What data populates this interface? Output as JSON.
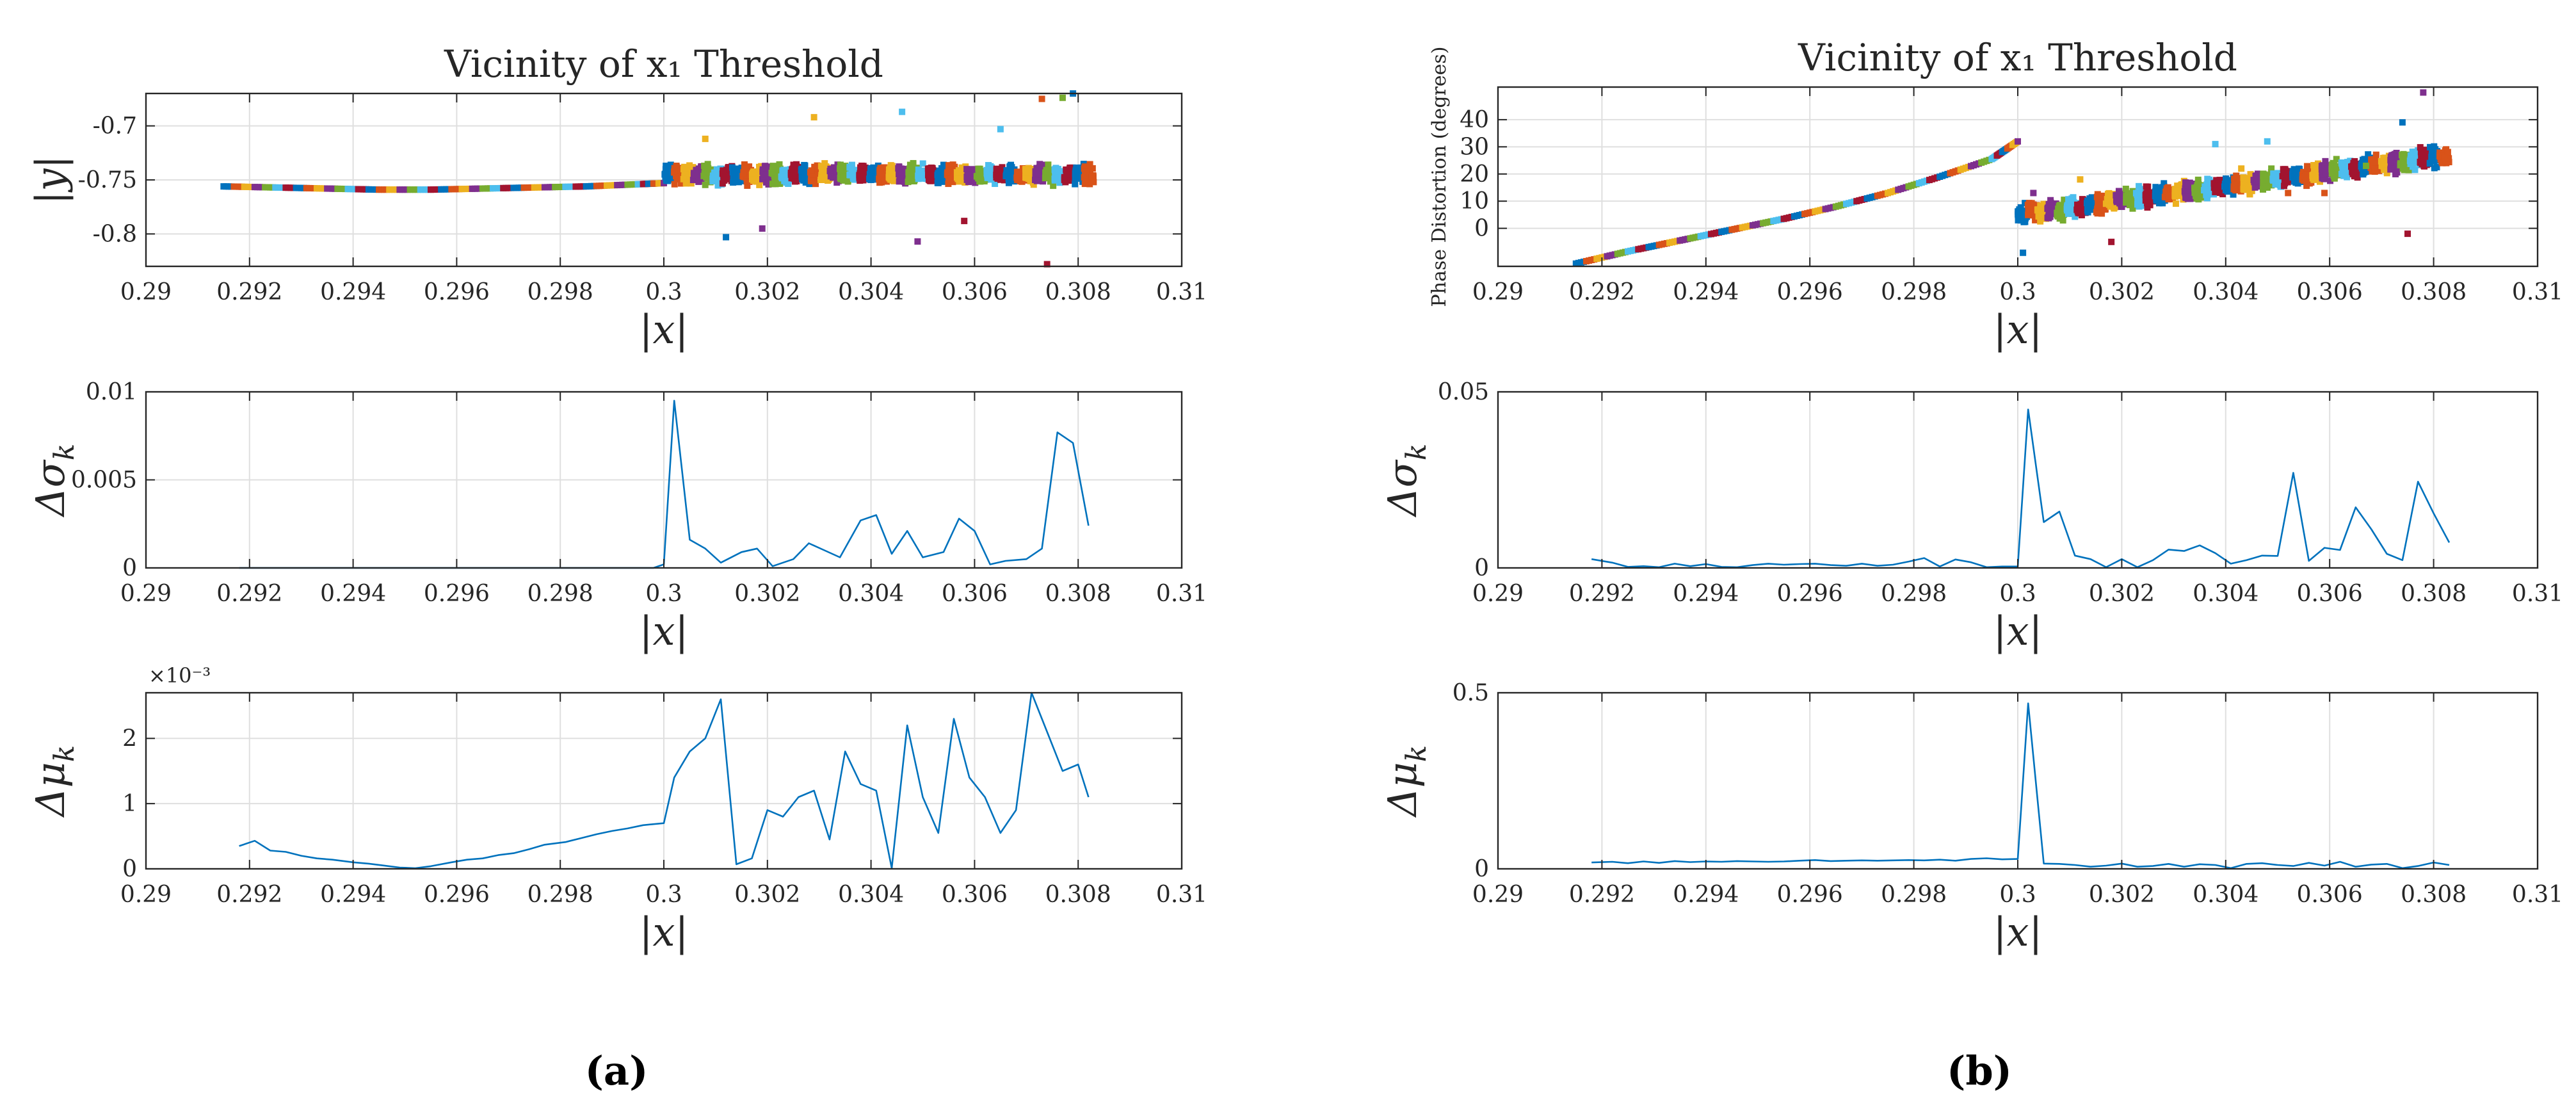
{
  "panel_labels": [
    "(a)",
    "(b)"
  ],
  "chart_data": [
    {
      "id": "a1",
      "type": "scatter",
      "title": "Vicinity of x₁ Threshold",
      "xlabel": "|x|",
      "ylabel": "|y|",
      "xlim": [
        0.29,
        0.31
      ],
      "ylim": [
        -0.83,
        -0.67
      ],
      "xticks": [
        0.29,
        0.292,
        0.294,
        0.296,
        0.298,
        0.3,
        0.302,
        0.304,
        0.306,
        0.308,
        0.31
      ],
      "xticklabels": [
        "0.29",
        "0.292",
        "0.294",
        "0.296",
        "0.298",
        "0.3",
        "0.302",
        "0.304",
        "0.306",
        "0.308",
        "0.31"
      ],
      "yticks": [
        -0.8,
        -0.75,
        -0.7
      ],
      "yticklabels": [
        "-0.8",
        "-0.75",
        "-0.7"
      ],
      "exponent": "",
      "palette": [
        "#0072BD",
        "#D95319",
        "#EDB120",
        "#7E2F8E",
        "#77AC30",
        "#4DBEEE",
        "#A2142F"
      ],
      "segments": [
        {
          "kind": "line",
          "x": [
            0.2915,
            0.2925,
            0.2935,
            0.2945,
            0.2955,
            0.2965,
            0.2975,
            0.2985,
            0.2995,
            0.3
          ],
          "y": [
            -0.756,
            -0.757,
            -0.758,
            -0.759,
            -0.759,
            -0.758,
            -0.757,
            -0.756,
            -0.754,
            -0.753
          ]
        },
        {
          "kind": "cloud",
          "x_range": [
            0.3,
            0.3083
          ],
          "center": -0.745,
          "spread": 0.012,
          "outliers": [
            [
              0.3012,
              -0.803
            ],
            [
              0.3049,
              -0.807
            ],
            [
              0.3074,
              -0.828
            ],
            [
              0.3029,
              -0.692
            ],
            [
              0.3046,
              -0.687
            ],
            [
              0.3073,
              -0.675
            ],
            [
              0.3077,
              -0.674
            ],
            [
              0.3079,
              -0.67
            ],
            [
              0.3019,
              -0.795
            ],
            [
              0.3058,
              -0.788
            ],
            [
              0.3008,
              -0.712
            ],
            [
              0.3065,
              -0.703
            ]
          ]
        }
      ]
    },
    {
      "id": "a2",
      "type": "line",
      "title": "",
      "xlabel": "|x|",
      "ylabel": "Δσk",
      "xlim": [
        0.29,
        0.31
      ],
      "ylim": [
        0,
        0.01
      ],
      "xticks": [
        0.29,
        0.292,
        0.294,
        0.296,
        0.298,
        0.3,
        0.302,
        0.304,
        0.306,
        0.308,
        0.31
      ],
      "xticklabels": [
        "0.29",
        "0.292",
        "0.294",
        "0.296",
        "0.298",
        "0.3",
        "0.302",
        "0.304",
        "0.306",
        "0.308",
        "0.31"
      ],
      "yticks": [
        0,
        0.005,
        0.01
      ],
      "yticklabels": [
        "0",
        "0.005",
        "0.01"
      ],
      "exponent": "",
      "series": [
        {
          "name": "Δσk",
          "color": "#0072BD",
          "x": [
            0.2918,
            0.2923,
            0.2928,
            0.2933,
            0.2938,
            0.2943,
            0.2948,
            0.2953,
            0.2958,
            0.2963,
            0.2968,
            0.2973,
            0.2978,
            0.2983,
            0.2988,
            0.2993,
            0.2998,
            0.3,
            0.3002,
            0.3005,
            0.3008,
            0.3011,
            0.3015,
            0.3018,
            0.3021,
            0.3025,
            0.3028,
            0.3031,
            0.3034,
            0.3038,
            0.3041,
            0.3044,
            0.3047,
            0.305,
            0.3054,
            0.3057,
            0.306,
            0.3063,
            0.3066,
            0.307,
            0.3073,
            0.3076,
            0.3079,
            0.3082
          ],
          "y": [
            0,
            0,
            0,
            0,
            0,
            0,
            0,
            0,
            0,
            0,
            0,
            0,
            0,
            0,
            0,
            0,
            0,
            0.0002,
            0.0095,
            0.0016,
            0.0011,
            0.0003,
            0.0009,
            0.0011,
            0.0001,
            0.0005,
            0.0014,
            0.001,
            0.0006,
            0.0027,
            0.003,
            0.0008,
            0.0021,
            0.0006,
            0.0009,
            0.0028,
            0.0021,
            0.0002,
            0.0004,
            0.0005,
            0.0011,
            0.0077,
            0.0071,
            0.0024
          ]
        }
      ]
    },
    {
      "id": "a3",
      "type": "line",
      "title": "",
      "xlabel": "|x|",
      "ylabel": "Δμk",
      "xlim": [
        0.29,
        0.31
      ],
      "ylim": [
        0,
        0.0027
      ],
      "xticks": [
        0.29,
        0.292,
        0.294,
        0.296,
        0.298,
        0.3,
        0.302,
        0.304,
        0.306,
        0.308,
        0.31
      ],
      "xticklabels": [
        "0.29",
        "0.292",
        "0.294",
        "0.296",
        "0.298",
        "0.3",
        "0.302",
        "0.304",
        "0.306",
        "0.308",
        "0.31"
      ],
      "yticks": [
        0,
        0.001,
        0.002
      ],
      "yticklabels": [
        "0",
        "1",
        "2"
      ],
      "exponent": "×10⁻³",
      "series": [
        {
          "name": "Δμk",
          "color": "#0072BD",
          "x": [
            0.2918,
            0.2921,
            0.2924,
            0.2927,
            0.293,
            0.2933,
            0.2936,
            0.294,
            0.2943,
            0.2946,
            0.2949,
            0.2952,
            0.2955,
            0.2959,
            0.2962,
            0.2965,
            0.2968,
            0.2971,
            0.2974,
            0.2977,
            0.2981,
            0.2984,
            0.2987,
            0.299,
            0.2993,
            0.2996,
            0.3,
            0.3002,
            0.3005,
            0.3008,
            0.3011,
            0.3014,
            0.3017,
            0.302,
            0.3023,
            0.3026,
            0.3029,
            0.3032,
            0.3035,
            0.3038,
            0.3041,
            0.3044,
            0.3047,
            0.305,
            0.3053,
            0.3056,
            0.3059,
            0.3062,
            0.3065,
            0.3068,
            0.3071,
            0.3074,
            0.3077,
            0.308,
            0.3082
          ],
          "y": [
            0.00035,
            0.00043,
            0.00028,
            0.00026,
            0.0002,
            0.00016,
            0.00014,
            0.0001,
            8e-05,
            5e-05,
            2e-05,
            1e-05,
            4e-05,
            0.0001,
            0.00014,
            0.00016,
            0.00021,
            0.00024,
            0.0003,
            0.00037,
            0.00041,
            0.00047,
            0.00053,
            0.00058,
            0.00062,
            0.00067,
            0.0007,
            0.0014,
            0.0018,
            0.002,
            0.0026,
            7e-05,
            0.00016,
            0.0009,
            0.0008,
            0.0011,
            0.0012,
            0.00045,
            0.0018,
            0.0013,
            0.0012,
            1e-05,
            0.0022,
            0.0011,
            0.00055,
            0.0023,
            0.0014,
            0.0011,
            0.00055,
            0.0009,
            0.0027,
            0.0021,
            0.0015,
            0.0016,
            0.0011
          ]
        }
      ]
    },
    {
      "id": "b1",
      "type": "scatter",
      "title": "Vicinity of x₁ Threshold",
      "xlabel": "|x|",
      "ylabel": "Phase Distortion (degrees)",
      "xlim": [
        0.29,
        0.31
      ],
      "ylim": [
        -14,
        52
      ],
      "xticks": [
        0.29,
        0.292,
        0.294,
        0.296,
        0.298,
        0.3,
        0.302,
        0.304,
        0.306,
        0.308,
        0.31
      ],
      "xticklabels": [
        "0.29",
        "0.292",
        "0.294",
        "0.296",
        "0.298",
        "0.3",
        "0.302",
        "0.304",
        "0.306",
        "0.308",
        "0.31"
      ],
      "yticks": [
        0,
        10,
        20,
        30,
        40
      ],
      "yticklabels": [
        "0",
        "10",
        "20",
        "30",
        "40"
      ],
      "exponent": "",
      "palette": [
        "#0072BD",
        "#D95319",
        "#EDB120",
        "#7E2F8E",
        "#77AC30",
        "#4DBEEE",
        "#A2142F"
      ],
      "segments": [
        {
          "kind": "line",
          "x": [
            0.2915,
            0.2925,
            0.2935,
            0.2945,
            0.2955,
            0.2965,
            0.2975,
            0.2985,
            0.2995,
            0.3
          ],
          "y": [
            -13,
            -8.5,
            -4.5,
            -0.5,
            3.5,
            8,
            13,
            19,
            25.5,
            32
          ]
        },
        {
          "kind": "cloud",
          "x_range": [
            0.3,
            0.3083
          ],
          "center_start": 5,
          "center_end": 27,
          "spread": 5,
          "outliers": [
            [
              0.3001,
              -9
            ],
            [
              0.3003,
              13
            ],
            [
              0.3018,
              -5
            ],
            [
              0.3043,
              22
            ],
            [
              0.3048,
              32
            ],
            [
              0.3052,
              13
            ],
            [
              0.3067,
              23
            ],
            [
              0.3074,
              39
            ],
            [
              0.3078,
              50
            ],
            [
              0.3075,
              -2
            ],
            [
              0.3012,
              18
            ],
            [
              0.3038,
              31
            ],
            [
              0.3059,
              13
            ]
          ]
        }
      ]
    },
    {
      "id": "b2",
      "type": "line",
      "title": "",
      "xlabel": "|x|",
      "ylabel": "Δσk",
      "xlim": [
        0.29,
        0.31
      ],
      "ylim": [
        0,
        0.05
      ],
      "xticks": [
        0.29,
        0.292,
        0.294,
        0.296,
        0.298,
        0.3,
        0.302,
        0.304,
        0.306,
        0.308,
        0.31
      ],
      "xticklabels": [
        "0.29",
        "0.292",
        "0.294",
        "0.296",
        "0.298",
        "0.3",
        "0.302",
        "0.304",
        "0.306",
        "0.308",
        "0.31"
      ],
      "yticks": [
        0,
        0.05
      ],
      "yticklabels": [
        "0",
        "0.05"
      ],
      "exponent": "",
      "series": [
        {
          "name": "Δσk",
          "color": "#0072BD",
          "x": [
            0.2918,
            0.2922,
            0.2925,
            0.2928,
            0.2931,
            0.2934,
            0.2937,
            0.294,
            0.2943,
            0.2946,
            0.2949,
            0.2952,
            0.2955,
            0.2958,
            0.2961,
            0.2964,
            0.2967,
            0.297,
            0.2973,
            0.2976,
            0.2979,
            0.2982,
            0.2985,
            0.2988,
            0.2991,
            0.2994,
            0.2997,
            0.3,
            0.3002,
            0.3005,
            0.3008,
            0.3011,
            0.3014,
            0.3017,
            0.302,
            0.3023,
            0.3026,
            0.3029,
            0.3032,
            0.3035,
            0.3038,
            0.3041,
            0.3044,
            0.3047,
            0.305,
            0.3053,
            0.3056,
            0.3059,
            0.3062,
            0.3065,
            0.3068,
            0.3071,
            0.3074,
            0.3077,
            0.308,
            0.3083
          ],
          "y": [
            0.0025,
            0.0015,
            0.0003,
            0.0005,
            0.0002,
            0.0012,
            0.0005,
            0.0011,
            0.0003,
            0.0002,
            0.0008,
            0.0012,
            0.0009,
            0.0011,
            0.0012,
            0.0008,
            0.0006,
            0.0012,
            0.0006,
            0.0009,
            0.0018,
            0.0028,
            0.0004,
            0.0024,
            0.0016,
            0.0002,
            0.0004,
            0.0004,
            0.045,
            0.013,
            0.016,
            0.0035,
            0.0025,
            0.0002,
            0.0025,
            0.0002,
            0.0022,
            0.0052,
            0.0048,
            0.0064,
            0.0042,
            0.0012,
            0.0022,
            0.0035,
            0.0034,
            0.027,
            0.002,
            0.0057,
            0.0051,
            0.0172,
            0.011,
            0.004,
            0.0022,
            0.0245,
            0.0155,
            0.0072
          ]
        }
      ]
    },
    {
      "id": "b3",
      "type": "line",
      "title": "",
      "xlabel": "|x|",
      "ylabel": "Δμk",
      "xlim": [
        0.29,
        0.31
      ],
      "ylim": [
        0,
        0.5
      ],
      "xticks": [
        0.29,
        0.292,
        0.294,
        0.296,
        0.298,
        0.3,
        0.302,
        0.304,
        0.306,
        0.308,
        0.31
      ],
      "xticklabels": [
        "0.29",
        "0.292",
        "0.294",
        "0.296",
        "0.298",
        "0.3",
        "0.302",
        "0.304",
        "0.306",
        "0.308",
        "0.31"
      ],
      "yticks": [
        0,
        0.5
      ],
      "yticklabels": [
        "0",
        "0.5"
      ],
      "exponent": "",
      "series": [
        {
          "name": "Δμk",
          "color": "#0072BD",
          "x": [
            0.2918,
            0.2922,
            0.2925,
            0.2928,
            0.2931,
            0.2934,
            0.2937,
            0.294,
            0.2943,
            0.2946,
            0.2949,
            0.2952,
            0.2955,
            0.2958,
            0.2961,
            0.2964,
            0.2967,
            0.297,
            0.2973,
            0.2976,
            0.2979,
            0.2982,
            0.2985,
            0.2988,
            0.2991,
            0.2994,
            0.2997,
            0.3,
            0.3002,
            0.3005,
            0.3008,
            0.3011,
            0.3014,
            0.3017,
            0.302,
            0.3023,
            0.3026,
            0.3029,
            0.3032,
            0.3035,
            0.3038,
            0.3041,
            0.3044,
            0.3047,
            0.305,
            0.3053,
            0.3056,
            0.3059,
            0.3062,
            0.3065,
            0.3068,
            0.3071,
            0.3074,
            0.3077,
            0.308,
            0.3083
          ],
          "y": [
            0.018,
            0.02,
            0.016,
            0.021,
            0.017,
            0.022,
            0.019,
            0.021,
            0.02,
            0.022,
            0.021,
            0.02,
            0.021,
            0.023,
            0.025,
            0.022,
            0.023,
            0.024,
            0.023,
            0.024,
            0.025,
            0.024,
            0.026,
            0.023,
            0.028,
            0.03,
            0.027,
            0.028,
            0.47,
            0.015,
            0.014,
            0.011,
            0.006,
            0.009,
            0.015,
            0.006,
            0.008,
            0.014,
            0.006,
            0.013,
            0.011,
            0.002,
            0.014,
            0.016,
            0.011,
            0.008,
            0.017,
            0.009,
            0.02,
            0.006,
            0.012,
            0.014,
            0.002,
            0.008,
            0.018,
            0.011
          ]
        }
      ]
    }
  ]
}
